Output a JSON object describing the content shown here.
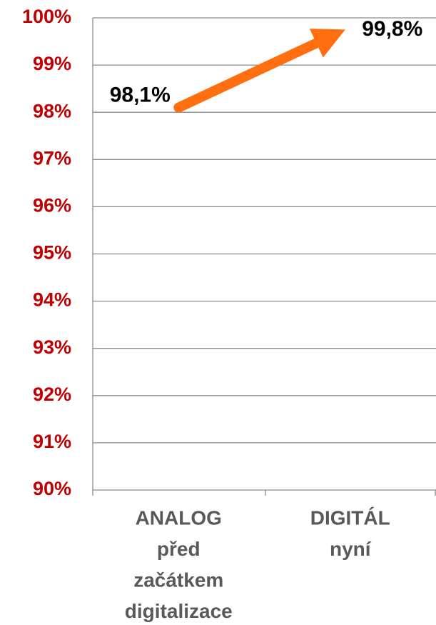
{
  "chart_data": {
    "type": "line",
    "categories": [
      [
        "ANALOG",
        "před",
        "začátkem",
        "digitalizace"
      ],
      [
        "DIGITÁL",
        "nyní"
      ]
    ],
    "values": [
      98.1,
      99.8
    ],
    "value_labels": [
      "98,1%",
      "99,8%"
    ],
    "color": "#ff6f0f",
    "ylim": [
      90,
      100
    ],
    "yticks": [
      {
        "value": 90,
        "label": "90%"
      },
      {
        "value": 91,
        "label": "91%"
      },
      {
        "value": 92,
        "label": "92%"
      },
      {
        "value": 93,
        "label": "93%"
      },
      {
        "value": 94,
        "label": "94%"
      },
      {
        "value": 95,
        "label": "95%"
      },
      {
        "value": 96,
        "label": "96%"
      },
      {
        "value": 97,
        "label": "97%"
      },
      {
        "value": 98,
        "label": "98%"
      },
      {
        "value": 99,
        "label": "99%"
      },
      {
        "value": 100,
        "label": "100%"
      }
    ],
    "grid": true
  }
}
